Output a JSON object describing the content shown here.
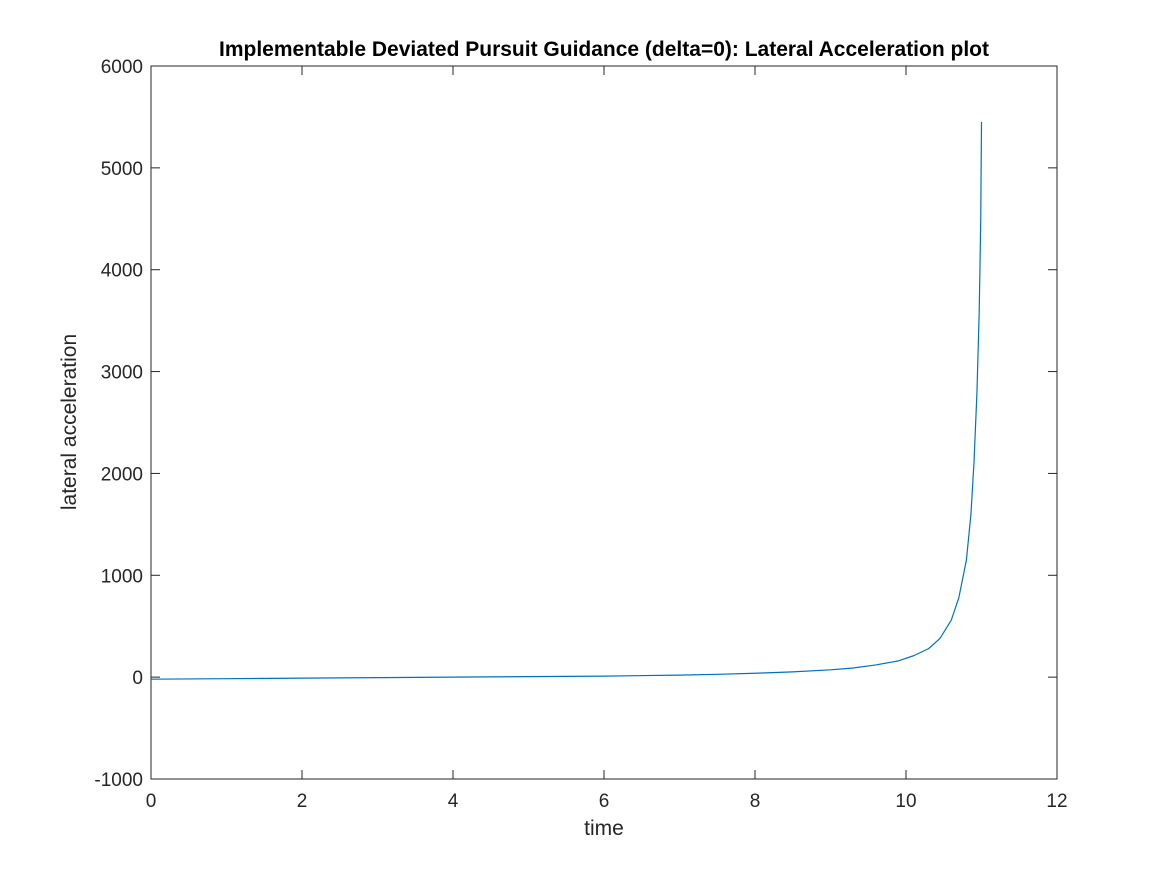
{
  "chart_data": {
    "type": "line",
    "title": "Implementable Deviated Pursuit Guidance (delta=0): Lateral Acceleration plot",
    "xlabel": "time",
    "ylabel": "lateral acceleration",
    "xlim": [
      0,
      12
    ],
    "ylim": [
      -1000,
      6000
    ],
    "xticks": [
      0,
      2,
      4,
      6,
      8,
      10,
      12
    ],
    "yticks": [
      -1000,
      0,
      1000,
      2000,
      3000,
      4000,
      5000,
      6000
    ],
    "xtick_labels": [
      "0",
      "2",
      "4",
      "6",
      "8",
      "10",
      "12"
    ],
    "ytick_labels": [
      "-1000",
      "0",
      "1000",
      "2000",
      "3000",
      "4000",
      "5000",
      "6000"
    ],
    "grid": false,
    "series": [
      {
        "color": "#0072BD",
        "x": [
          0,
          1,
          2,
          3,
          4,
          5,
          6,
          7,
          7.5,
          8,
          8.5,
          9,
          9.3,
          9.6,
          9.9,
          10.1,
          10.3,
          10.45,
          10.6,
          10.7,
          10.8,
          10.86,
          10.9,
          10.94,
          10.97,
          10.99,
          11.0
        ],
        "y": [
          -20,
          -15,
          -10,
          -5,
          0,
          5,
          10,
          20,
          28,
          38,
          52,
          72,
          90,
          120,
          160,
          210,
          280,
          380,
          560,
          780,
          1150,
          1600,
          2100,
          2800,
          3600,
          4500,
          5450
        ]
      }
    ]
  }
}
